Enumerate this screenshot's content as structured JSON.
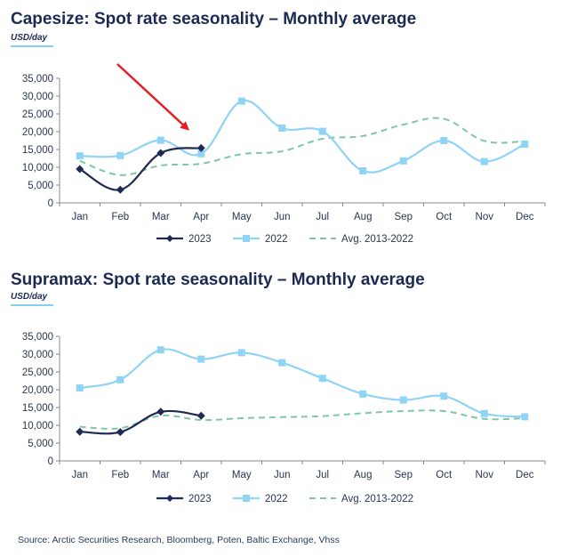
{
  "charts": [
    {
      "id": "capesize",
      "title": "Capesize: Spot rate seasonality – Monthly average",
      "unit": "USD/day"
    },
    {
      "id": "supramax",
      "title": "Supramax: Spot rate seasonality – Monthly average",
      "unit": "USD/day"
    }
  ],
  "source": "Source: Arctic Securities Research, Bloomberg, Poten, Baltic Exchange, Vhss",
  "colors": {
    "series_2023": "#1f2a52",
    "series_2022": "#8fd3f5",
    "series_avg": "#7fc6a8",
    "grid": "#d9d9d9",
    "axis": "#8a8a8a",
    "arrow": "#e31e24"
  },
  "chart_data": [
    {
      "type": "line",
      "title": "Capesize: Spot rate seasonality – Monthly average",
      "ylabel": "USD/day",
      "xlabel": "",
      "categories": [
        "Jan",
        "Feb",
        "Mar",
        "Apr",
        "May",
        "Jun",
        "Jul",
        "Aug",
        "Sep",
        "Oct",
        "Nov",
        "Dec"
      ],
      "ylim": [
        0,
        35000
      ],
      "yticks": [
        0,
        5000,
        10000,
        15000,
        20000,
        25000,
        30000,
        35000
      ],
      "ytick_labels": [
        "0",
        "5,000",
        "10,000",
        "15,000",
        "20,000",
        "25,000",
        "30,000",
        "35,000"
      ],
      "grid": false,
      "legend": "bottom",
      "annotation": "red arrow pointing to Apr 2023",
      "series": [
        {
          "name": "2023",
          "style": "solid",
          "marker": "diamond",
          "values": [
            9500,
            3700,
            14000,
            15400,
            null,
            null,
            null,
            null,
            null,
            null,
            null,
            null
          ]
        },
        {
          "name": "2022",
          "style": "solid",
          "marker": "square",
          "values": [
            13200,
            13300,
            17600,
            13800,
            28600,
            21000,
            20100,
            9000,
            11800,
            17500,
            11600,
            16500
          ]
        },
        {
          "name": "Avg. 2013-2022",
          "style": "dashed",
          "marker": "none",
          "values": [
            11800,
            7800,
            10500,
            11000,
            13700,
            14500,
            18000,
            18800,
            22000,
            23600,
            17400,
            17300
          ]
        }
      ]
    },
    {
      "type": "line",
      "title": "Supramax: Spot rate seasonality – Monthly average",
      "ylabel": "USD/day",
      "xlabel": "",
      "categories": [
        "Jan",
        "Feb",
        "Mar",
        "Apr",
        "May",
        "Jun",
        "Jul",
        "Aug",
        "Sep",
        "Oct",
        "Nov",
        "Dec"
      ],
      "ylim": [
        0,
        35000
      ],
      "yticks": [
        0,
        5000,
        10000,
        15000,
        20000,
        25000,
        30000,
        35000
      ],
      "ytick_labels": [
        "0",
        "5,000",
        "10,000",
        "15,000",
        "20,000",
        "25,000",
        "30,000",
        "35,000"
      ],
      "grid": false,
      "legend": "bottom",
      "series": [
        {
          "name": "2023",
          "style": "solid",
          "marker": "diamond",
          "values": [
            8200,
            8100,
            13800,
            12700,
            null,
            null,
            null,
            null,
            null,
            null,
            null,
            null
          ]
        },
        {
          "name": "2022",
          "style": "solid",
          "marker": "square",
          "values": [
            20500,
            22800,
            31200,
            28600,
            30400,
            27600,
            23200,
            18800,
            17100,
            18200,
            13300,
            12400
          ]
        },
        {
          "name": "Avg. 2013-2022",
          "style": "dashed",
          "marker": "none",
          "values": [
            9600,
            9200,
            12700,
            11500,
            12000,
            12300,
            12600,
            13400,
            14000,
            14000,
            11800,
            12000
          ]
        }
      ]
    }
  ]
}
